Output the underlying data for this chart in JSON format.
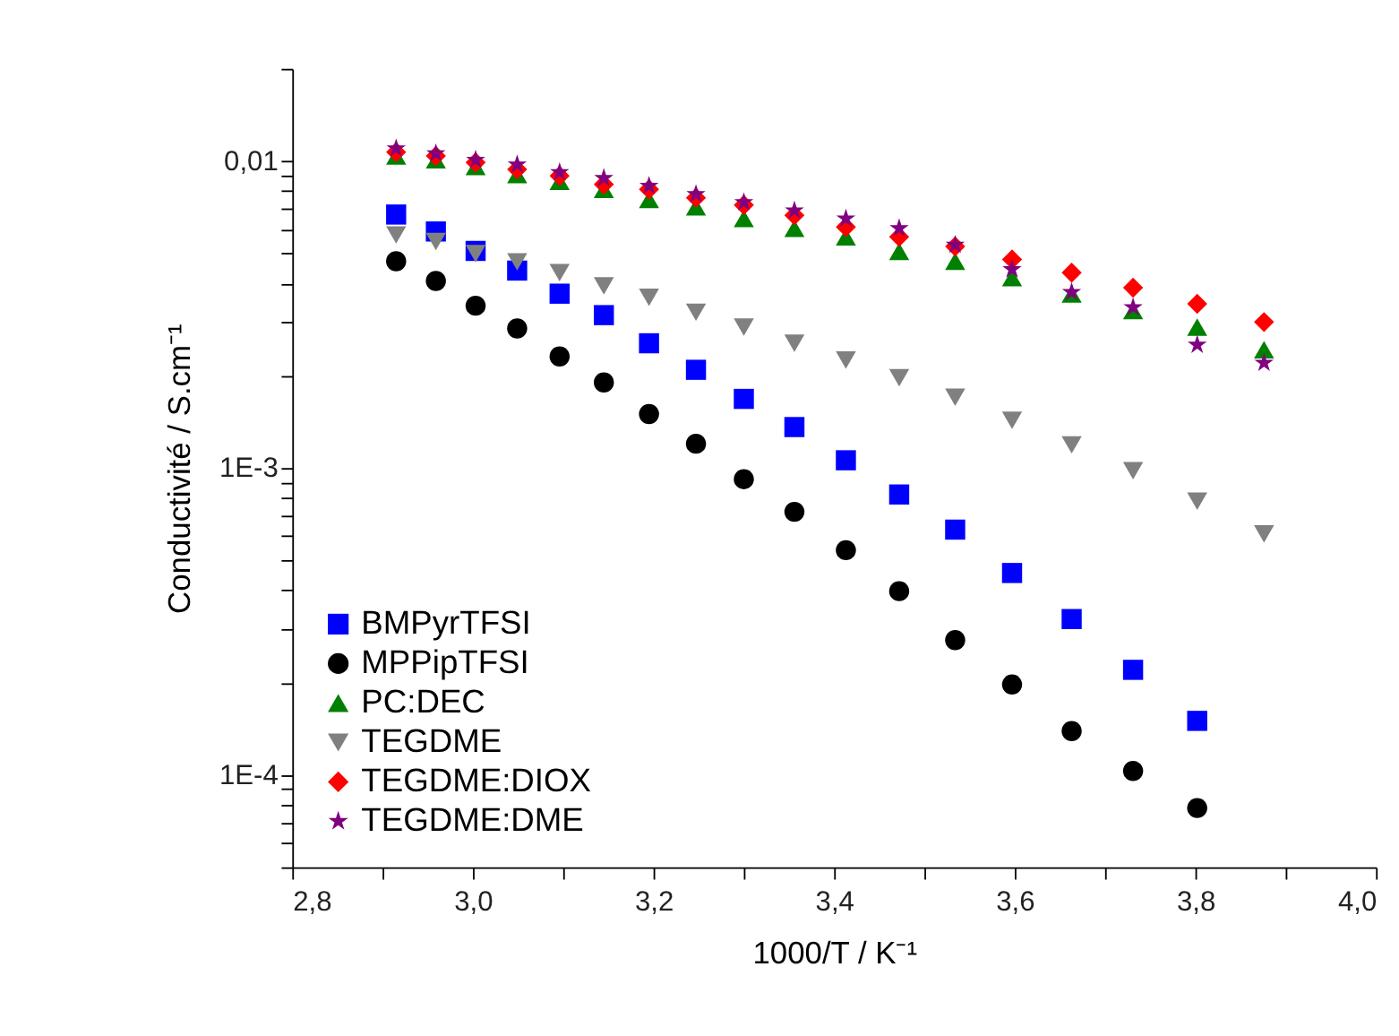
{
  "chart_data": {
    "type": "scatter",
    "xlabel": "1000/T / K⁻¹",
    "ylabel": "Conductivité / S.cm⁻¹",
    "x": [
      2.915,
      2.959,
      3.003,
      3.049,
      3.096,
      3.145,
      3.195,
      3.247,
      3.3,
      3.356,
      3.413,
      3.472,
      3.534,
      3.597,
      3.663,
      3.731,
      3.802,
      3.876
    ],
    "series": [
      {
        "name": "BMPyrTFSI",
        "color": "#0000ff",
        "marker": "square",
        "values": [
          0.0067,
          0.0059,
          0.0051,
          0.0044,
          0.0037,
          0.00315,
          0.00255,
          0.00209,
          0.00168,
          0.00136,
          0.00106,
          0.00082,
          0.00063,
          0.000455,
          0.000322,
          0.00022,
          0.00015,
          null
        ]
      },
      {
        "name": "MPPipTFSI",
        "color": "#000000",
        "marker": "circle",
        "values": [
          0.00472,
          0.00407,
          0.00338,
          0.00285,
          0.00231,
          0.0019,
          0.0015,
          0.0012,
          0.00092,
          0.00072,
          0.00054,
          0.000397,
          0.000275,
          0.000197,
          0.000139,
          0.000103,
          7.8e-05,
          null
        ]
      },
      {
        "name": "PC:DEC",
        "color": "#008000",
        "marker": "triangle",
        "values": [
          0.0104,
          0.0101,
          0.0096,
          0.00905,
          0.0086,
          0.0081,
          0.0075,
          0.0071,
          0.0065,
          0.00604,
          0.00567,
          0.00508,
          0.00472,
          0.00417,
          0.00369,
          0.00326,
          0.00288,
          0.00243
        ]
      },
      {
        "name": "TEGDME",
        "color": "#808080",
        "marker": "triangle-down",
        "values": [
          0.00575,
          0.00547,
          0.005,
          0.0047,
          0.00433,
          0.00392,
          0.0036,
          0.00322,
          0.00288,
          0.00255,
          0.00225,
          0.00197,
          0.0017,
          0.00143,
          0.00119,
          0.00098,
          0.00078,
          0.00061
        ]
      },
      {
        "name": "TEGDME:DIOX",
        "color": "#ff0000",
        "marker": "diamond",
        "values": [
          0.0107,
          0.0104,
          0.0099,
          0.0094,
          0.00895,
          0.0084,
          0.0081,
          0.0076,
          0.0072,
          0.00666,
          0.0061,
          0.00567,
          0.00527,
          0.00478,
          0.00433,
          0.00387,
          0.00343,
          0.00299
        ]
      },
      {
        "name": "TEGDME:DME",
        "color": "#800080",
        "marker": "star",
        "values": [
          0.011,
          0.0106,
          0.0101,
          0.00975,
          0.0092,
          0.0088,
          0.0083,
          0.0078,
          0.00735,
          0.0069,
          0.0065,
          0.00604,
          0.00534,
          0.00444,
          0.00374,
          0.00334,
          0.00252,
          0.0022
        ]
      }
    ],
    "log": "y",
    "legend": "bottom left",
    "grid": false,
    "xlim": [
      2.8,
      4.0
    ],
    "xticks": [
      {
        "value": 2.8,
        "label": "2,8"
      },
      {
        "value": 2.9,
        "label": null
      },
      {
        "value": 3.0,
        "label": "3,0"
      },
      {
        "value": 3.1,
        "label": null
      },
      {
        "value": 3.2,
        "label": "3,2"
      },
      {
        "value": 3.3,
        "label": null
      },
      {
        "value": 3.4,
        "label": "3,4"
      },
      {
        "value": 3.5,
        "label": null
      },
      {
        "value": 3.6,
        "label": "3,6"
      },
      {
        "value": 3.7,
        "label": null
      },
      {
        "value": 3.8,
        "label": "3,8"
      },
      {
        "value": 3.9,
        "label": null
      },
      {
        "value": 4.0,
        "label": "4,0"
      }
    ],
    "ylim": [
      5e-05,
      0.02
    ],
    "yticks": [
      {
        "value": 5e-05,
        "label": null
      },
      {
        "value": 6e-05,
        "label": null
      },
      {
        "value": 7e-05,
        "label": null
      },
      {
        "value": 8e-05,
        "label": null
      },
      {
        "value": 9e-05,
        "label": null
      },
      {
        "value": 0.0001,
        "label": "1E-4"
      },
      {
        "value": 0.0002,
        "label": null
      },
      {
        "value": 0.0003,
        "label": null
      },
      {
        "value": 0.0004,
        "label": null
      },
      {
        "value": 0.0005,
        "label": null
      },
      {
        "value": 0.0006,
        "label": null
      },
      {
        "value": 0.0007,
        "label": null
      },
      {
        "value": 0.0008,
        "label": null
      },
      {
        "value": 0.0009,
        "label": null
      },
      {
        "value": 0.001,
        "label": "1E-3"
      },
      {
        "value": 0.002,
        "label": null
      },
      {
        "value": 0.003,
        "label": null
      },
      {
        "value": 0.004,
        "label": null
      },
      {
        "value": 0.005,
        "label": null
      },
      {
        "value": 0.006,
        "label": null
      },
      {
        "value": 0.007,
        "label": null
      },
      {
        "value": 0.008,
        "label": null
      },
      {
        "value": 0.009,
        "label": null
      },
      {
        "value": 0.01,
        "label": "0,01"
      },
      {
        "value": 0.02,
        "label": null
      }
    ]
  }
}
